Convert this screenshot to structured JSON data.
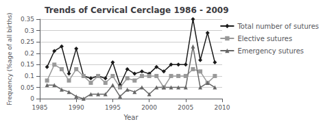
{
  "chart_data": {
    "type": "line",
    "title": "Trends of Cervical Cerclage 1986 - 2009",
    "xlabel": "Year",
    "ylabel": "Frequency (%age of all births)",
    "x": [
      1986,
      1987,
      1988,
      1989,
      1990,
      1991,
      1992,
      1993,
      1994,
      1995,
      1996,
      1997,
      1998,
      1999,
      2000,
      2001,
      2002,
      2003,
      2004,
      2005,
      2006,
      2007,
      2008,
      2009
    ],
    "series": [
      {
        "name": "Total number of sutures",
        "color": "#1a1a1a",
        "marker": "diamond",
        "values": [
          0.14,
          0.21,
          0.23,
          0.11,
          0.22,
          0.1,
          0.09,
          0.1,
          0.09,
          0.16,
          0.06,
          0.13,
          0.11,
          0.12,
          0.11,
          0.14,
          0.12,
          0.15,
          0.15,
          0.15,
          0.35,
          0.17,
          0.29,
          0.16
        ]
      },
      {
        "name": "Elective sutures",
        "color": "#999999",
        "marker": "square",
        "values": [
          0.08,
          0.15,
          0.13,
          0.08,
          0.13,
          0.1,
          0.07,
          0.1,
          0.07,
          0.1,
          0.05,
          0.09,
          0.08,
          0.1,
          0.1,
          0.1,
          0.05,
          0.1,
          0.1,
          0.1,
          0.13,
          0.12,
          0.07,
          0.1
        ]
      },
      {
        "name": "Emergency sutures",
        "color": "#666666",
        "marker": "triangle",
        "values": [
          0.06,
          0.06,
          0.04,
          0.03,
          0.01,
          0.0,
          0.02,
          0.02,
          0.02,
          0.06,
          0.01,
          0.04,
          0.03,
          0.05,
          0.02,
          0.05,
          0.05,
          0.05,
          0.05,
          0.05,
          0.23,
          0.05,
          0.07,
          0.05
        ]
      }
    ],
    "xlim": [
      1985,
      2010
    ],
    "xticks": [
      1985,
      1990,
      1995,
      2000,
      2005,
      2010
    ],
    "ylim": [
      0,
      0.35
    ],
    "yticks": [
      0,
      0.05,
      0.1,
      0.15,
      0.2,
      0.25,
      0.3,
      0.35
    ],
    "grid": true,
    "legend": "upper right"
  }
}
